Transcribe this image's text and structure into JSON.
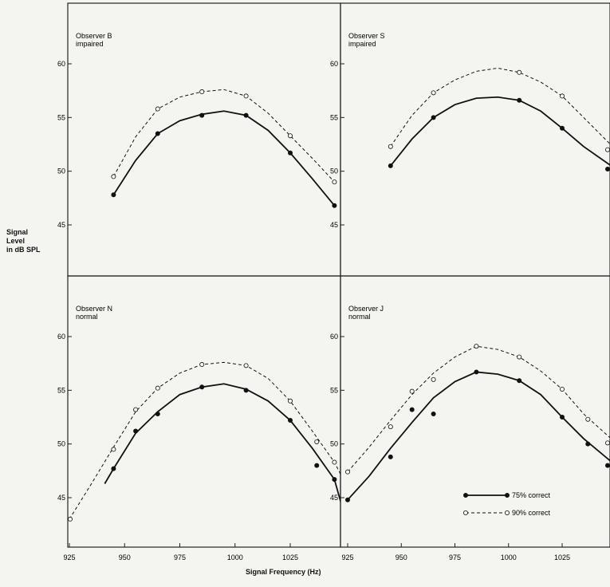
{
  "figure": {
    "y_axis_label_line1": "Signal",
    "y_axis_label_line2": "Level",
    "y_axis_label_line3": "in dB SPL",
    "x_axis_label": "Signal Frequency (Hz)",
    "legend": [
      {
        "label": "75% correct",
        "style": "solid-filled"
      },
      {
        "label": "90% correct",
        "style": "dashed-open"
      }
    ]
  },
  "chart_data": [
    {
      "type": "line",
      "panel": "top-left",
      "annotation_line1": "Observer B",
      "annotation_line2": "impaired",
      "ylim": [
        40,
        65
      ],
      "yticks": [
        45,
        50,
        55,
        60
      ],
      "xlim": [
        925,
        1050
      ],
      "series": [
        {
          "name": "75% correct",
          "x": [
            945,
            965,
            985,
            1005,
            1025,
            1045
          ],
          "y": [
            47.8,
            53.5,
            55.2,
            55.2,
            51.7,
            46.8
          ],
          "curve_x": [
            945,
            955,
            965,
            975,
            985,
            995,
            1005,
            1015,
            1025,
            1035,
            1045
          ],
          "curve_y": [
            47.8,
            51.0,
            53.5,
            54.7,
            55.3,
            55.6,
            55.2,
            53.8,
            51.7,
            49.3,
            46.8
          ]
        },
        {
          "name": "90% correct",
          "x": [
            945,
            965,
            985,
            1005,
            1025,
            1045
          ],
          "y": [
            49.5,
            55.8,
            57.4,
            57.0,
            53.3,
            49.0
          ],
          "curve_x": [
            945,
            955,
            965,
            975,
            985,
            995,
            1005,
            1015,
            1025,
            1035,
            1045
          ],
          "curve_y": [
            49.5,
            53.2,
            55.8,
            56.9,
            57.4,
            57.6,
            57.0,
            55.4,
            53.3,
            51.2,
            49.0
          ]
        }
      ]
    },
    {
      "type": "line",
      "panel": "top-right",
      "annotation_line1": "Observer S",
      "annotation_line2": "impaired",
      "ylim": [
        40,
        65
      ],
      "yticks": [
        45,
        50,
        55,
        60
      ],
      "xlim": [
        925,
        1050
      ],
      "series": [
        {
          "name": "75% correct",
          "x": [
            945,
            965,
            1005,
            1025,
            1050
          ],
          "y": [
            50.5,
            55.0,
            56.6,
            54.0,
            50.2
          ],
          "curve_x": [
            945,
            955,
            965,
            975,
            985,
            995,
            1005,
            1015,
            1025,
            1035,
            1050
          ],
          "curve_y": [
            50.5,
            53.0,
            55.0,
            56.2,
            56.8,
            56.9,
            56.6,
            55.6,
            54.0,
            52.3,
            50.2
          ]
        },
        {
          "name": "90% correct",
          "x": [
            945,
            965,
            1005,
            1025,
            1050
          ],
          "y": [
            52.3,
            57.3,
            59.2,
            57.0,
            52.0
          ],
          "curve_x": [
            945,
            955,
            965,
            975,
            985,
            995,
            1005,
            1015,
            1025,
            1035,
            1050
          ],
          "curve_y": [
            52.3,
            55.2,
            57.3,
            58.5,
            59.3,
            59.6,
            59.2,
            58.3,
            57.0,
            55.0,
            52.0
          ]
        }
      ]
    },
    {
      "type": "line",
      "panel": "bottom-left",
      "annotation_line1": "Observer N",
      "annotation_line2": "normal",
      "ylim": [
        40,
        65
      ],
      "yticks": [
        45,
        50,
        55,
        60
      ],
      "xlim": [
        925,
        1050
      ],
      "series": [
        {
          "name": "75% correct",
          "x": [
            945,
            955,
            965,
            985,
            1005,
            1025,
            1037,
            1045
          ],
          "y": [
            47.7,
            51.2,
            52.8,
            55.3,
            55.0,
            52.2,
            48.0,
            46.7
          ],
          "curve_x": [
            941,
            945,
            955,
            965,
            975,
            985,
            995,
            1005,
            1015,
            1025,
            1035,
            1045,
            1048
          ],
          "curve_y": [
            46.3,
            47.7,
            51.0,
            53.0,
            54.6,
            55.3,
            55.6,
            55.1,
            54.0,
            52.2,
            49.6,
            46.7,
            44.5
          ]
        },
        {
          "name": "90% correct",
          "x": [
            925,
            945,
            955,
            965,
            985,
            1005,
            1025,
            1037,
            1045
          ],
          "y": [
            43.0,
            49.5,
            53.2,
            55.2,
            57.4,
            57.3,
            54.0,
            50.2,
            48.3
          ],
          "curve_x": [
            925,
            935,
            945,
            955,
            965,
            975,
            985,
            995,
            1005,
            1015,
            1025,
            1035,
            1045,
            1050
          ],
          "curve_y": [
            43.0,
            46.3,
            49.7,
            53.0,
            55.2,
            56.6,
            57.4,
            57.6,
            57.3,
            56.1,
            54.0,
            51.2,
            48.3,
            46.3
          ]
        }
      ]
    },
    {
      "type": "line",
      "panel": "bottom-right",
      "annotation_line1": "Observer J",
      "annotation_line2": "normal",
      "ylim": [
        40,
        65
      ],
      "yticks": [
        45,
        50,
        55,
        60
      ],
      "xlim": [
        925,
        1050
      ],
      "series": [
        {
          "name": "75% correct",
          "x": [
            925,
            945,
            955,
            965,
            985,
            1005,
            1025,
            1037,
            1050
          ],
          "y": [
            44.8,
            48.8,
            53.2,
            52.8,
            56.7,
            55.9,
            52.5,
            50.0,
            48.0
          ],
          "curve_x": [
            925,
            935,
            945,
            955,
            965,
            975,
            985,
            995,
            1005,
            1015,
            1025,
            1035,
            1050
          ],
          "curve_y": [
            44.8,
            47.0,
            49.6,
            52.0,
            54.3,
            55.8,
            56.7,
            56.5,
            55.9,
            54.6,
            52.5,
            50.5,
            48.0
          ]
        },
        {
          "name": "90% correct",
          "x": [
            925,
            945,
            955,
            965,
            985,
            1005,
            1025,
            1037,
            1050
          ],
          "y": [
            47.4,
            51.6,
            54.9,
            56.0,
            59.1,
            58.1,
            55.1,
            52.3,
            50.1
          ],
          "curve_x": [
            925,
            935,
            945,
            955,
            965,
            975,
            985,
            995,
            1005,
            1015,
            1025,
            1035,
            1050
          ],
          "curve_y": [
            47.4,
            49.7,
            52.2,
            54.6,
            56.6,
            58.1,
            59.1,
            58.8,
            58.1,
            56.8,
            55.1,
            52.8,
            50.1
          ]
        }
      ]
    }
  ],
  "x_ticks": {
    "left": [
      925,
      950,
      975,
      1000,
      1025
    ],
    "right": [
      925,
      950,
      975,
      1000,
      1025
    ]
  }
}
